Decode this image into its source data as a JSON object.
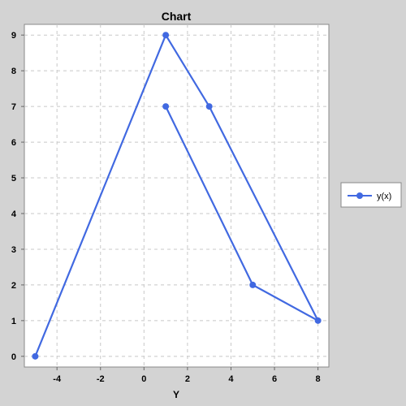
{
  "chart_data": {
    "type": "line",
    "title": "Chart",
    "xlabel": "Y",
    "ylabel": "",
    "xlim": [
      -5.5,
      8.5
    ],
    "ylim": [
      -0.3,
      9.3
    ],
    "xticks": [
      -4,
      -2,
      0,
      2,
      4,
      6,
      8
    ],
    "yticks": [
      0,
      1,
      2,
      3,
      4,
      5,
      6,
      7,
      8,
      9
    ],
    "grid": true,
    "legend_position": "right",
    "series": [
      {
        "name": "y(x)",
        "color": "#4169e1",
        "points": [
          {
            "x": -5,
            "y": 0
          },
          {
            "x": 1,
            "y": 9
          },
          {
            "x": 3,
            "y": 7
          },
          {
            "x": 8,
            "y": 1
          },
          {
            "x": 5,
            "y": 2
          },
          {
            "x": 1,
            "y": 7
          }
        ]
      }
    ]
  }
}
